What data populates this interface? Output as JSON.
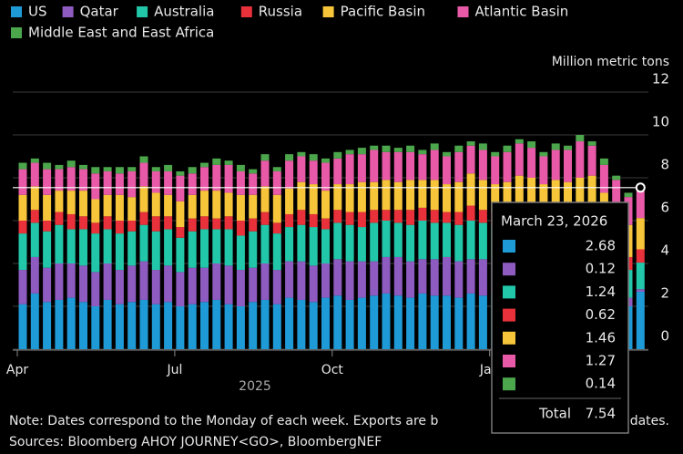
{
  "chart_data": {
    "type": "stacked_bar",
    "unit_label": "Million metric tons",
    "year_label": "2025",
    "categories": [
      "Apr",
      null,
      null,
      null,
      null,
      null,
      null,
      null,
      null,
      null,
      null,
      null,
      null,
      "Jul",
      null,
      null,
      null,
      null,
      null,
      null,
      null,
      null,
      null,
      null,
      null,
      null,
      "Oct",
      null,
      null,
      null,
      null,
      null,
      null,
      null,
      null,
      null,
      null,
      null,
      null,
      "Jan",
      null,
      null,
      null,
      null,
      null,
      null,
      null,
      null,
      null,
      null,
      null,
      null
    ],
    "ylim": [
      0,
      12
    ],
    "yticks": [
      0,
      2,
      4,
      6,
      8,
      10,
      12
    ],
    "grid": true,
    "series": [
      {
        "name": "US",
        "color": "#1e9bd7",
        "values": [
          2.1,
          2.6,
          2.2,
          2.3,
          2.4,
          2.2,
          2.0,
          2.3,
          2.1,
          2.2,
          2.3,
          2.1,
          2.2,
          2.0,
          2.1,
          2.2,
          2.3,
          2.1,
          2.0,
          2.2,
          2.3,
          2.1,
          2.4,
          2.3,
          2.2,
          2.4,
          2.5,
          2.3,
          2.4,
          2.5,
          2.6,
          2.5,
          2.4,
          2.6,
          2.5,
          2.5,
          2.4,
          2.6,
          2.5,
          2.6,
          2.5,
          2.4,
          2.6,
          2.5,
          2.5,
          2.6,
          2.4,
          2.5,
          2.3,
          2.2,
          2.0,
          2.68
        ]
      },
      {
        "name": "Qatar",
        "color": "#8e5bc0",
        "values": [
          1.6,
          1.7,
          1.6,
          1.7,
          1.6,
          1.7,
          1.6,
          1.7,
          1.6,
          1.7,
          1.8,
          1.6,
          1.7,
          1.6,
          1.7,
          1.6,
          1.7,
          1.8,
          1.7,
          1.6,
          1.7,
          1.6,
          1.7,
          1.8,
          1.7,
          1.6,
          1.7,
          1.8,
          1.7,
          1.6,
          1.7,
          1.8,
          1.7,
          1.6,
          1.7,
          1.8,
          1.7,
          1.6,
          1.7,
          1.6,
          1.7,
          1.8,
          1.7,
          1.6,
          1.7,
          1.6,
          1.7,
          1.7,
          1.5,
          0.9,
          0.4,
          0.12
        ]
      },
      {
        "name": "Australia",
        "color": "#22c7a9",
        "values": [
          1.7,
          1.6,
          1.7,
          1.8,
          1.6,
          1.7,
          1.8,
          1.6,
          1.7,
          1.6,
          1.7,
          1.8,
          1.7,
          1.6,
          1.7,
          1.8,
          1.6,
          1.7,
          1.6,
          1.7,
          1.8,
          1.7,
          1.6,
          1.7,
          1.8,
          1.6,
          1.7,
          1.7,
          1.6,
          1.8,
          1.7,
          1.6,
          1.7,
          1.8,
          1.7,
          1.6,
          1.7,
          1.8,
          1.7,
          1.6,
          1.7,
          1.8,
          1.6,
          1.7,
          1.6,
          1.7,
          1.8,
          1.6,
          1.5,
          1.4,
          1.3,
          1.24
        ]
      },
      {
        "name": "Russia",
        "color": "#e8313a",
        "values": [
          0.6,
          0.6,
          0.5,
          0.6,
          0.7,
          0.6,
          0.5,
          0.6,
          0.6,
          0.5,
          0.6,
          0.7,
          0.6,
          0.5,
          0.6,
          0.6,
          0.5,
          0.6,
          0.7,
          0.6,
          0.6,
          0.5,
          0.6,
          0.7,
          0.6,
          0.5,
          0.6,
          0.6,
          0.7,
          0.6,
          0.5,
          0.6,
          0.7,
          0.6,
          0.6,
          0.5,
          0.6,
          0.7,
          0.6,
          0.6,
          0.5,
          0.6,
          0.7,
          0.6,
          0.6,
          0.5,
          0.6,
          0.7,
          0.6,
          0.6,
          0.6,
          0.62
        ]
      },
      {
        "name": "Pacific Basin",
        "color": "#f7c53a",
        "values": [
          1.2,
          1.1,
          1.2,
          1.0,
          1.1,
          1.2,
          1.1,
          1.0,
          1.2,
          1.1,
          1.2,
          1.1,
          1.0,
          1.2,
          1.1,
          1.2,
          1.3,
          1.1,
          1.2,
          1.1,
          1.2,
          1.3,
          1.2,
          1.3,
          1.4,
          1.3,
          1.2,
          1.3,
          1.4,
          1.3,
          1.4,
          1.3,
          1.4,
          1.3,
          1.4,
          1.3,
          1.4,
          1.5,
          1.4,
          1.3,
          1.4,
          1.5,
          1.4,
          1.3,
          1.5,
          1.4,
          1.5,
          1.6,
          1.4,
          1.5,
          1.5,
          1.46
        ]
      },
      {
        "name": "Atlantic Basin",
        "color": "#e85aa8",
        "values": [
          1.2,
          1.1,
          1.2,
          1.0,
          1.1,
          1.0,
          1.2,
          1.1,
          1.0,
          1.2,
          1.1,
          1.0,
          1.1,
          1.2,
          1.0,
          1.1,
          1.2,
          1.3,
          1.1,
          1.0,
          1.2,
          1.1,
          1.3,
          1.2,
          1.1,
          1.3,
          1.2,
          1.4,
          1.3,
          1.5,
          1.3,
          1.4,
          1.3,
          1.2,
          1.4,
          1.3,
          1.4,
          1.3,
          1.4,
          1.3,
          1.4,
          1.5,
          1.4,
          1.3,
          1.4,
          1.5,
          1.7,
          1.4,
          1.3,
          1.3,
          1.3,
          1.27
        ]
      },
      {
        "name": "Middle East and East Africa",
        "color": "#4ca64c",
        "values": [
          0.3,
          0.2,
          0.3,
          0.2,
          0.3,
          0.2,
          0.3,
          0.2,
          0.3,
          0.2,
          0.3,
          0.2,
          0.3,
          0.2,
          0.3,
          0.2,
          0.3,
          0.2,
          0.3,
          0.2,
          0.3,
          0.2,
          0.3,
          0.2,
          0.3,
          0.2,
          0.3,
          0.2,
          0.3,
          0.2,
          0.3,
          0.2,
          0.3,
          0.2,
          0.3,
          0.2,
          0.3,
          0.2,
          0.3,
          0.2,
          0.3,
          0.2,
          0.3,
          0.2,
          0.3,
          0.2,
          0.3,
          0.2,
          0.3,
          0.2,
          0.2,
          0.14
        ]
      }
    ],
    "tooltip": {
      "date": "March 23, 2026",
      "total_label": "Total",
      "total": 7.54
    },
    "note_start": "Note: Dates correspond to the Monday of each week. Exports are b",
    "note_end": "dates.",
    "sources": "Sources: Bloomberg AHOY JOURNEY<GO>, BloombergNEF"
  }
}
